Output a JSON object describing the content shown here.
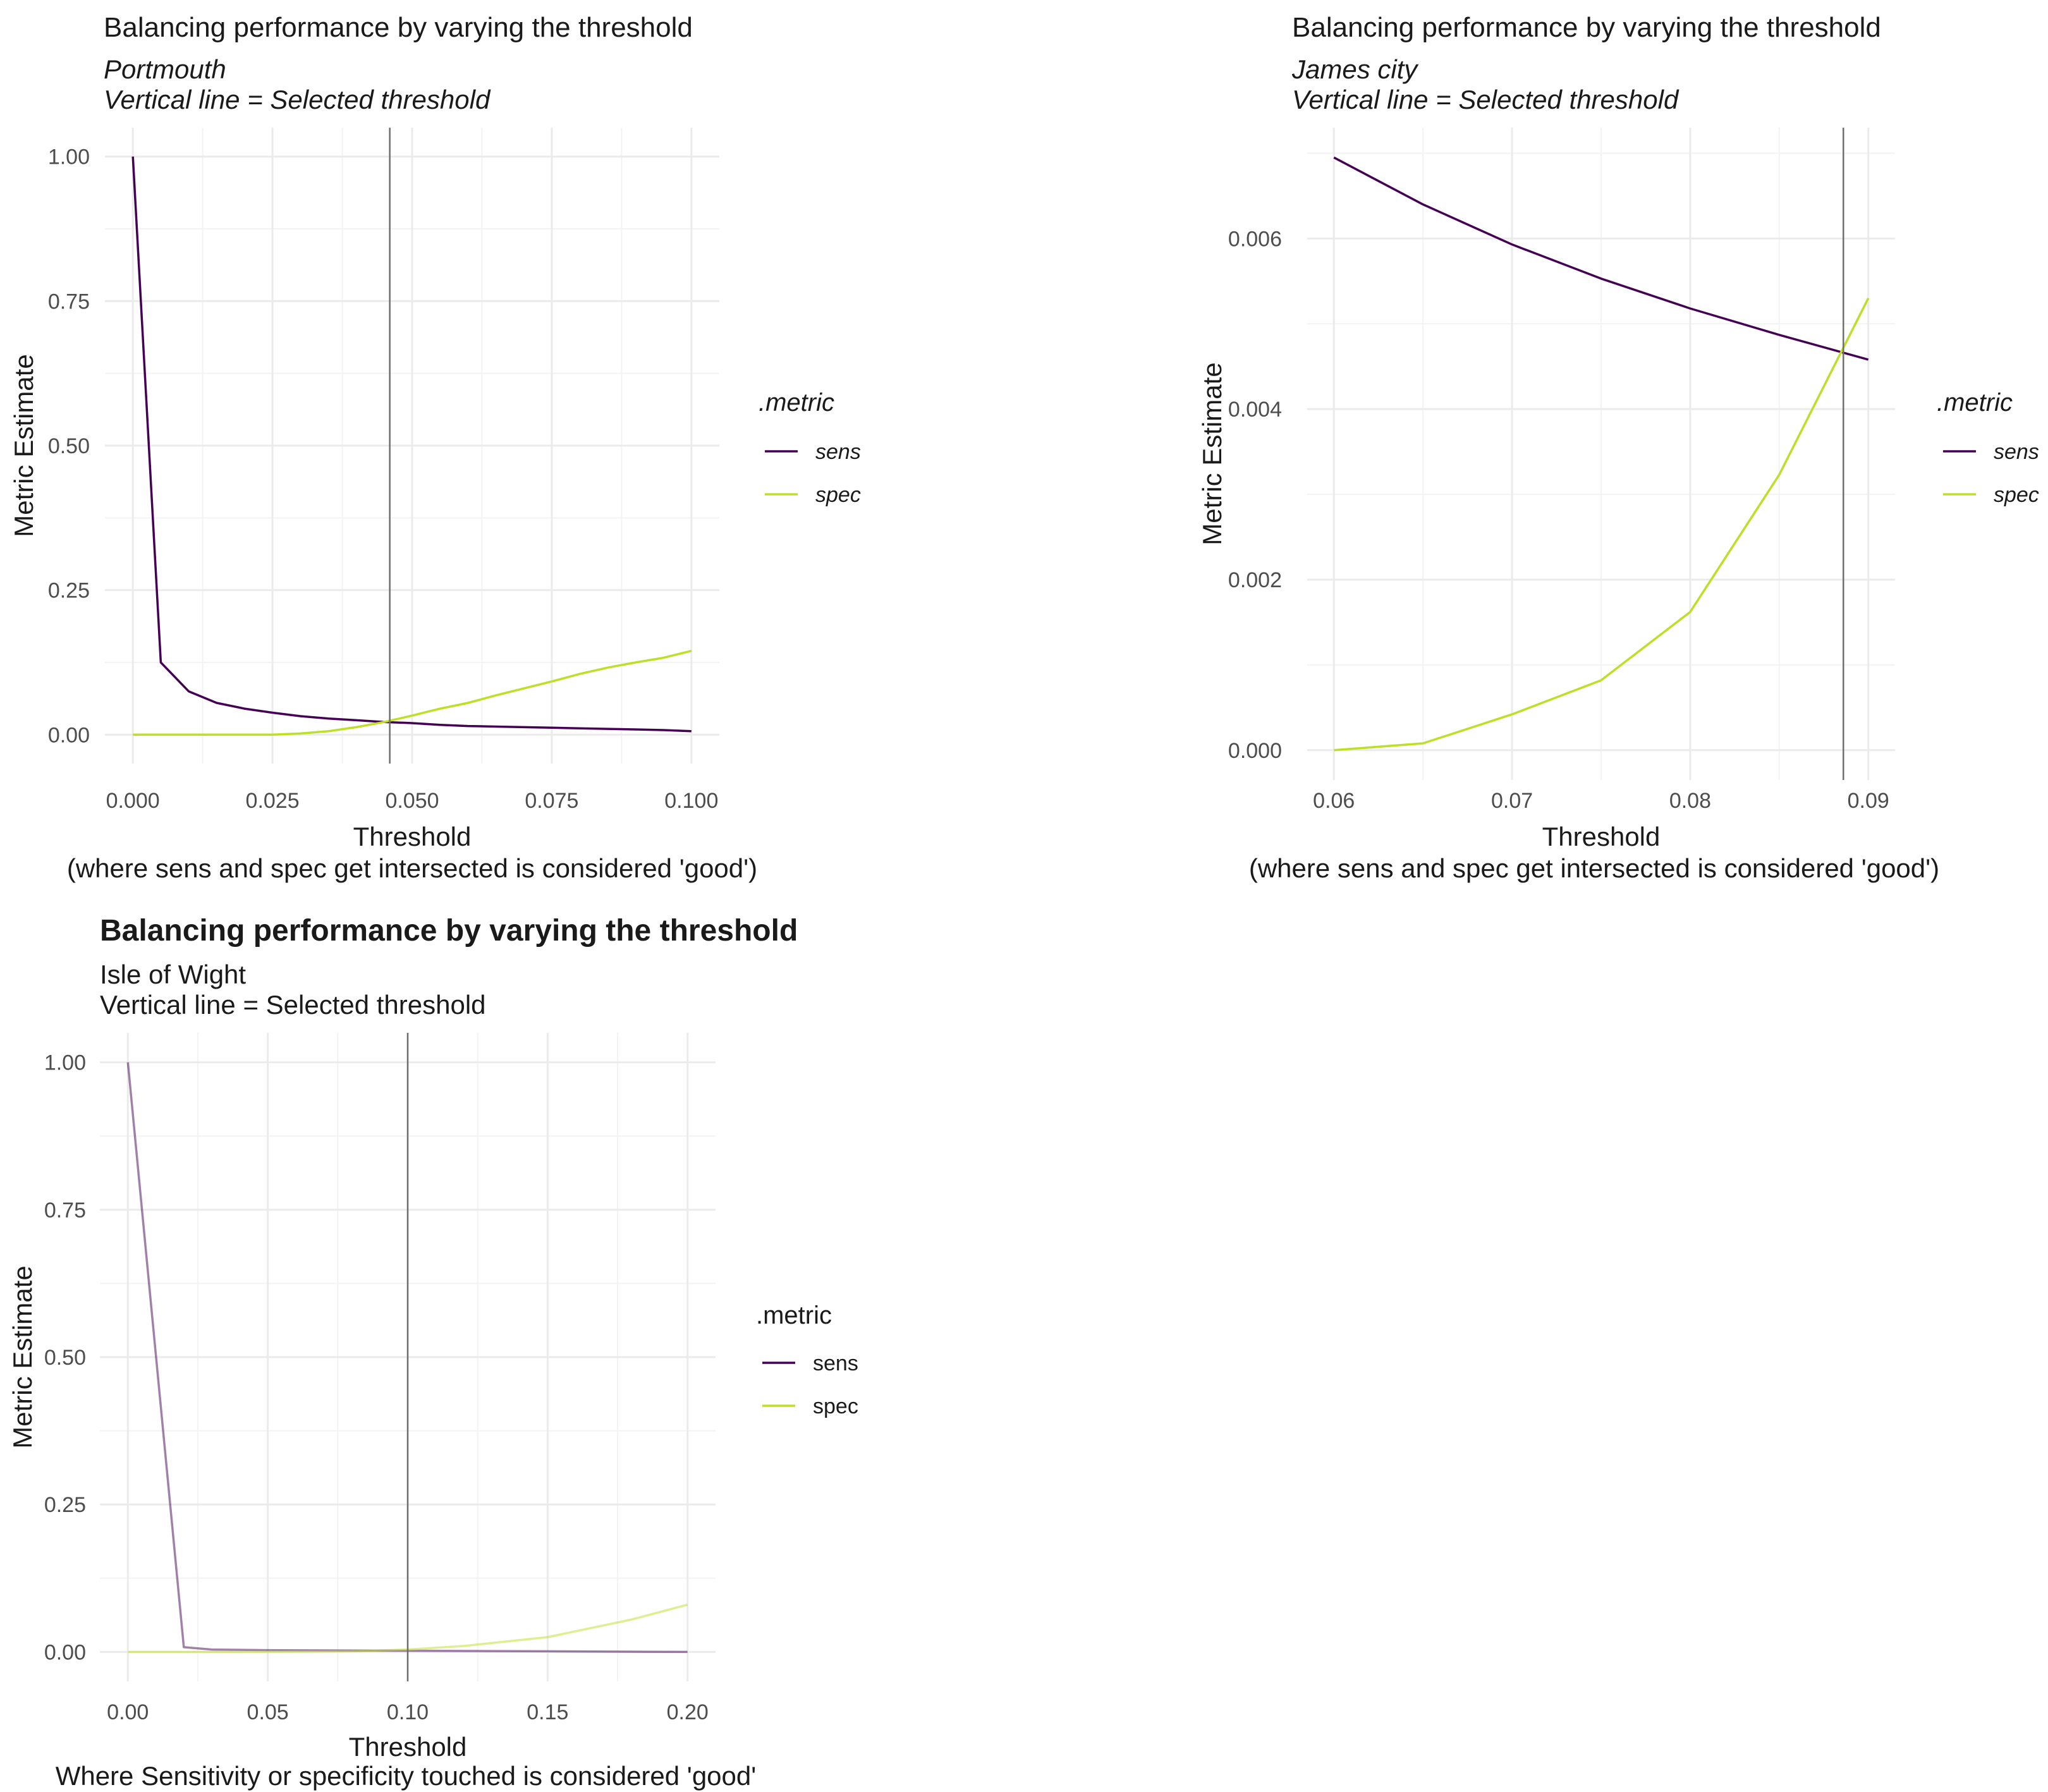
{
  "colors": {
    "sens": "#440154",
    "spec": "#bddf26",
    "grid": "#ebebeb",
    "axis_text": "#4d4d4d",
    "vline": "#6e6e6e",
    "text": "#1a1a1a"
  },
  "chart_data": [
    {
      "type": "line",
      "title": "Balancing performance by varying the threshold",
      "subtitle": [
        "Portmouth",
        "Vertical line = Selected threshold"
      ],
      "subtitle_italic": true,
      "title_bold": false,
      "xlabel": "Threshold",
      "caption": "(where sens and spec get intersected is considered 'good')",
      "ylabel": "Metric Estimate",
      "xlim": [
        -0.005,
        0.105
      ],
      "ylim": [
        -0.05,
        1.05
      ],
      "x_ticks": [
        0,
        0.025,
        0.05,
        0.075,
        0.1
      ],
      "x_tick_labels": [
        "0.000",
        "0.025",
        "0.050",
        "0.075",
        "0.100"
      ],
      "y_ticks": [
        0,
        0.25,
        0.5,
        0.75,
        1
      ],
      "y_tick_labels": [
        "0.00",
        "0.25",
        "0.50",
        "0.75",
        "1.00"
      ],
      "selected_threshold": 0.046,
      "grid": true,
      "legend": {
        "title": ".metric",
        "position": "right",
        "italic": true,
        "entries": [
          "sens",
          "spec"
        ]
      },
      "series": [
        {
          "name": "sens",
          "x": [
            0,
            0.005,
            0.01,
            0.015,
            0.02,
            0.025,
            0.03,
            0.035,
            0.04,
            0.045,
            0.05,
            0.055,
            0.06,
            0.065,
            0.07,
            0.075,
            0.08,
            0.085,
            0.09,
            0.095,
            0.1
          ],
          "y": [
            1.0,
            0.125,
            0.075,
            0.055,
            0.045,
            0.038,
            0.032,
            0.028,
            0.025,
            0.022,
            0.02,
            0.017,
            0.015,
            0.014,
            0.013,
            0.012,
            0.011,
            0.01,
            0.009,
            0.008,
            0.006
          ]
        },
        {
          "name": "spec",
          "x": [
            0,
            0.005,
            0.01,
            0.015,
            0.02,
            0.025,
            0.03,
            0.035,
            0.04,
            0.045,
            0.05,
            0.055,
            0.06,
            0.065,
            0.07,
            0.075,
            0.08,
            0.085,
            0.09,
            0.095,
            0.1
          ],
          "y": [
            0.0,
            0.0,
            0.0,
            0.0,
            0.0,
            0.0,
            0.002,
            0.006,
            0.013,
            0.022,
            0.033,
            0.045,
            0.055,
            0.068,
            0.08,
            0.092,
            0.105,
            0.116,
            0.125,
            0.133,
            0.145
          ]
        }
      ]
    },
    {
      "type": "line",
      "title": "Balancing performance by varying the threshold",
      "subtitle": [
        "James city",
        "Vertical line = Selected threshold"
      ],
      "subtitle_italic": true,
      "title_bold": false,
      "xlabel": "Threshold",
      "caption": "(where sens and spec get intersected is considered 'good')",
      "ylabel": "Metric Estimate",
      "xlim": [
        0.0585,
        0.0915
      ],
      "ylim": [
        -0.00035,
        0.0073
      ],
      "x_ticks": [
        0.06,
        0.07,
        0.08,
        0.09
      ],
      "x_tick_labels": [
        "0.06",
        "0.07",
        "0.08",
        "0.09"
      ],
      "y_ticks": [
        0,
        0.002,
        0.004,
        0.006
      ],
      "y_tick_labels": [
        "0.000",
        "0.002",
        "0.004",
        "0.006"
      ],
      "selected_threshold": 0.0886,
      "grid": true,
      "legend": {
        "title": ".metric",
        "position": "right",
        "italic": true,
        "entries": [
          "sens",
          "spec"
        ]
      },
      "series": [
        {
          "name": "sens",
          "x": [
            0.06,
            0.065,
            0.07,
            0.075,
            0.08,
            0.085,
            0.09
          ],
          "y": [
            0.00695,
            0.0064,
            0.00593,
            0.00553,
            0.00518,
            0.00487,
            0.00458
          ]
        },
        {
          "name": "spec",
          "x": [
            0.06,
            0.065,
            0.07,
            0.075,
            0.08,
            0.085,
            0.09
          ],
          "y": [
            0.0,
            8e-05,
            0.00042,
            0.00082,
            0.00162,
            0.00323,
            0.0053
          ]
        }
      ]
    },
    {
      "type": "line",
      "title": "Balancing performance by varying the threshold",
      "subtitle": [
        "Isle of Wight",
        "Vertical line = Selected threshold"
      ],
      "subtitle_italic": false,
      "title_bold": true,
      "xlabel": "Threshold",
      "caption": "Where Sensitivity or specificity touched is considered 'good'",
      "ylabel": "Metric Estimate",
      "xlim": [
        -0.01,
        0.21
      ],
      "ylim": [
        -0.05,
        1.05
      ],
      "x_ticks": [
        0,
        0.05,
        0.1,
        0.15,
        0.2
      ],
      "x_tick_labels": [
        "0.00",
        "0.05",
        "0.10",
        "0.15",
        "0.20"
      ],
      "y_ticks": [
        0,
        0.25,
        0.5,
        0.75,
        1
      ],
      "y_tick_labels": [
        "0.00",
        "0.25",
        "0.50",
        "0.75",
        "1.00"
      ],
      "selected_threshold": 0.1,
      "grid": true,
      "legend": {
        "title": ".metric",
        "position": "right",
        "italic": false,
        "entries": [
          "sens",
          "spec"
        ]
      },
      "series": [
        {
          "name": "sens",
          "x": [
            0,
            0.02,
            0.03,
            0.05,
            0.1,
            0.15,
            0.2
          ],
          "y": [
            1.0,
            0.008,
            0.004,
            0.003,
            0.002,
            0.001,
            0.0
          ]
        },
        {
          "name": "spec",
          "x": [
            0,
            0.05,
            0.08,
            0.1,
            0.12,
            0.15,
            0.18,
            0.2
          ],
          "y": [
            0.0,
            0.0,
            0.001,
            0.004,
            0.01,
            0.025,
            0.055,
            0.08
          ]
        }
      ]
    }
  ]
}
